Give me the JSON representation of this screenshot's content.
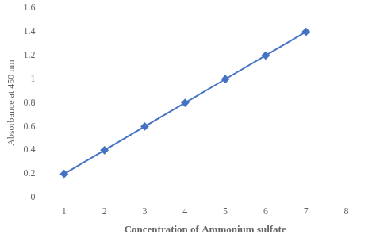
{
  "chart_data": {
    "type": "line",
    "x": [
      1,
      2,
      3,
      4,
      5,
      6,
      7
    ],
    "values": [
      0.2,
      0.4,
      0.6,
      0.8,
      1.0,
      1.2,
      1.4
    ],
    "color": "#4472C4",
    "marker": "diamond",
    "line_style": "solid",
    "xlabel": "Concentration of Ammonium sulfate",
    "ylabel": "Absorbance at 450 nm",
    "xlim": [
      0.5,
      8.5
    ],
    "ylim": [
      0,
      1.6
    ],
    "xticks": [
      1,
      2,
      3,
      4,
      5,
      6,
      7,
      8
    ],
    "yticks": [
      0,
      0.2,
      0.4,
      0.6,
      0.8,
      1.0,
      1.2,
      1.4,
      1.6
    ],
    "grid": false
  }
}
